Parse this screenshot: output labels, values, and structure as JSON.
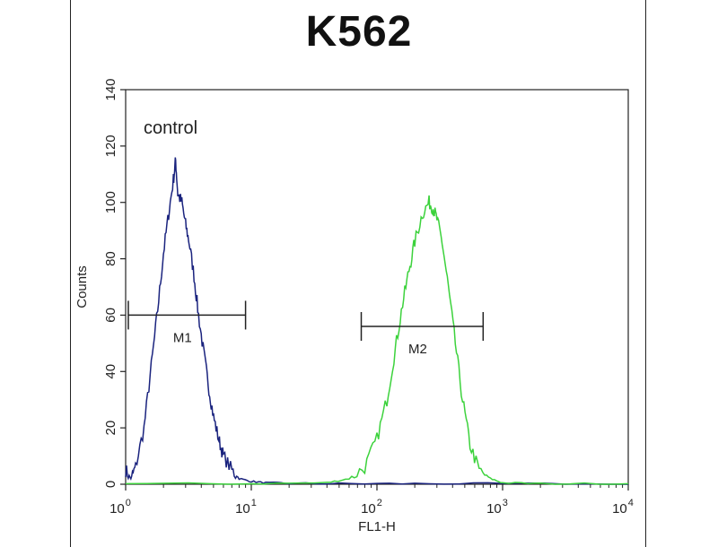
{
  "chart_data": {
    "type": "line",
    "title": "K562",
    "xlabel": "FL1-H",
    "ylabel": "Counts",
    "xscale": "log",
    "xlim": [
      1,
      10000
    ],
    "ylim": [
      0,
      140
    ],
    "yticks": [
      0,
      20,
      40,
      60,
      80,
      100,
      120,
      140
    ],
    "xticks": [
      {
        "value": 1,
        "base": "10",
        "exp": "0"
      },
      {
        "value": 10,
        "base": "10",
        "exp": "1"
      },
      {
        "value": 100,
        "base": "10",
        "exp": "2"
      },
      {
        "value": 1000,
        "base": "10",
        "exp": "3"
      },
      {
        "value": 10000,
        "base": "10",
        "exp": "4"
      }
    ],
    "annotation": "control",
    "colors": {
      "control": "#1a237e",
      "sample": "#3cd23c"
    },
    "series": [
      {
        "color": "#1a237e",
        "x": [
          1,
          1.1,
          1.2,
          1.4,
          1.6,
          1.8,
          2.0,
          2.2,
          2.4,
          2.5,
          2.6,
          2.8,
          3.0,
          3.2,
          3.5,
          3.8,
          4.2,
          4.6,
          5.0,
          5.5,
          6.0,
          7.0,
          8.0,
          10,
          13,
          20,
          50,
          200,
          1000,
          10000
        ],
        "y": [
          5,
          2,
          6,
          20,
          42,
          62,
          82,
          96,
          108,
          115,
          103,
          100,
          92,
          86,
          74,
          60,
          46,
          34,
          24,
          16,
          10,
          5,
          2,
          1,
          0.5,
          0.3,
          0.2,
          0.2,
          0.2,
          0
        ]
      },
      {
        "color": "#3cd23c",
        "x": [
          1,
          10,
          40,
          60,
          80,
          100,
          120,
          140,
          160,
          180,
          200,
          230,
          260,
          280,
          300,
          330,
          370,
          420,
          480,
          550,
          650,
          800,
          1000,
          2000,
          10000
        ],
        "y": [
          0.2,
          0.2,
          0.5,
          2,
          6,
          16,
          30,
          48,
          64,
          76,
          86,
          96,
          100,
          98,
          94,
          86,
          70,
          50,
          30,
          14,
          5,
          2,
          0.5,
          0.2,
          0.2
        ]
      }
    ],
    "markers": [
      {
        "label": "M1",
        "x_range": [
          1.05,
          9
        ],
        "y": 60
      },
      {
        "label": "M2",
        "x_range": [
          75,
          700
        ],
        "y": 56
      }
    ]
  }
}
